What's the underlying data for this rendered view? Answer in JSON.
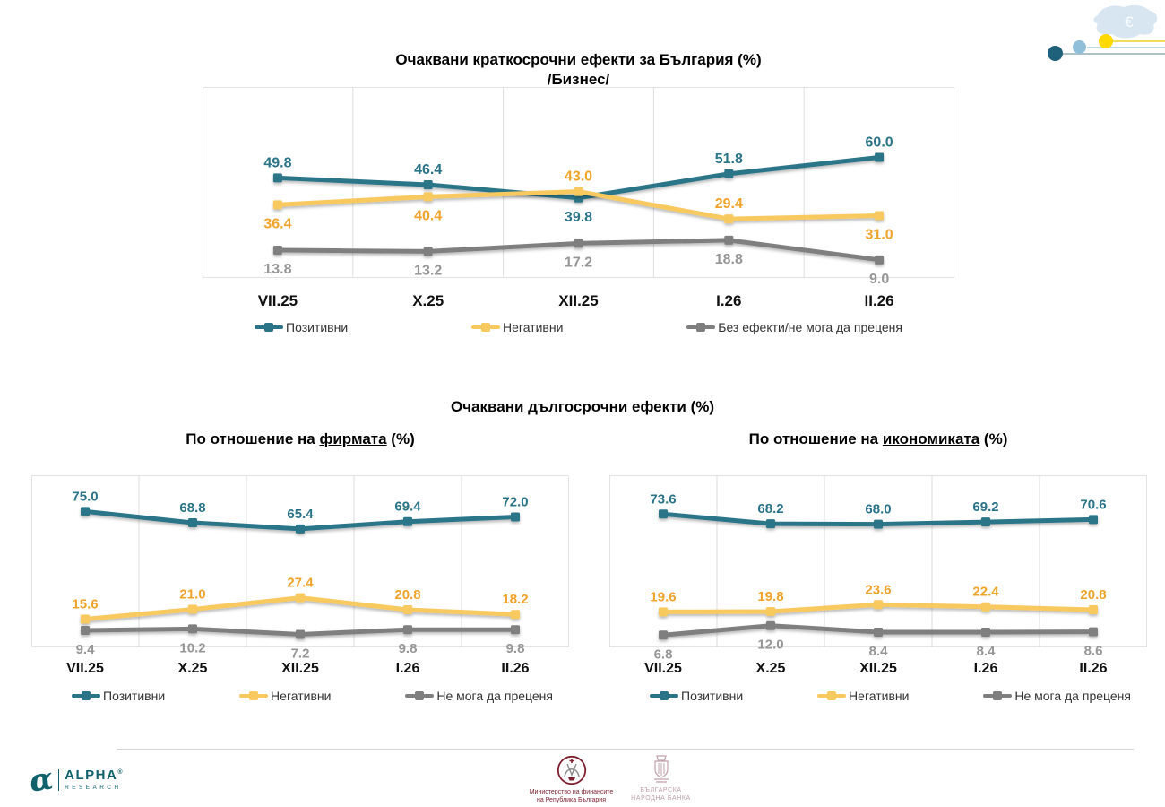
{
  "colors": {
    "teal": "#2B7488",
    "yellow_line": "#F8C95E",
    "yellow_label": "#F0A32A",
    "gray_line": "#7F7F7F",
    "gray_label": "#969696",
    "grid": "#DEDEDE",
    "alpha_brand": "#11616C",
    "ministry_red": "#7E1F2D",
    "bnb_rose": "#C1A0AB",
    "map_blue": "#D8E6F2",
    "dot_yellow": "#FFD900",
    "dot_blue": "#8FBFD9",
    "dot_teal": "#1F607A"
  },
  "decor": {
    "currency_symbol": "€"
  },
  "section": {
    "long_term_title": "Очаквани дългосрочни ефекти (%)"
  },
  "chart_data": [
    {
      "id": "short_term_business",
      "type": "line",
      "title": "Очаквани краткосрочни ефекти за България (%)",
      "subtitle": "/Бизнес/",
      "categories": [
        "VII.25",
        "X.25",
        "XII.25",
        "I.26",
        "II.26"
      ],
      "ylim": [
        0,
        95
      ],
      "grid": "vertical",
      "legend_position": "bottom",
      "series": [
        {
          "name": "Позитивни",
          "color": "#2B7488",
          "values": [
            49.8,
            46.4,
            39.8,
            51.8,
            60.0
          ],
          "label_side": [
            "above",
            "above",
            "below",
            "above",
            "above"
          ]
        },
        {
          "name": "Негативни",
          "color": "#F8C95E",
          "label_color": "#F0A32A",
          "values": [
            36.4,
            40.4,
            43.0,
            29.4,
            31.0
          ],
          "label_side": [
            "below",
            "below",
            "above",
            "above",
            "below"
          ]
        },
        {
          "name": "Без ефекти/не мога да преценя",
          "color": "#7F7F7F",
          "label_color": "#969696",
          "values": [
            13.8,
            13.2,
            17.2,
            18.8,
            9.0
          ],
          "label_side": [
            "below",
            "below",
            "below",
            "below",
            "below"
          ]
        }
      ]
    },
    {
      "id": "long_term_firm",
      "type": "line",
      "title_prefix": "По отношение на ",
      "title_underline": "фирмата",
      "title_suffix": " (%)",
      "categories": [
        "VII.25",
        "X.25",
        "XII.25",
        "I.26",
        "II.26"
      ],
      "ylim": [
        0,
        95
      ],
      "grid": "vertical",
      "legend_position": "bottom",
      "series": [
        {
          "name": "Позитивни",
          "color": "#2B7488",
          "values": [
            75.0,
            68.8,
            65.4,
            69.4,
            72.0
          ],
          "label_side": [
            "above",
            "above",
            "above",
            "above",
            "above"
          ]
        },
        {
          "name": "Негативни",
          "color": "#F8C95E",
          "label_color": "#F0A32A",
          "values": [
            15.6,
            21.0,
            27.4,
            20.8,
            18.2
          ],
          "label_side": [
            "above",
            "above",
            "above",
            "above",
            "above"
          ]
        },
        {
          "name": "Не мога да преценя",
          "color": "#7F7F7F",
          "label_color": "#969696",
          "values": [
            9.4,
            10.2,
            7.2,
            9.8,
            9.8
          ],
          "label_side": [
            "below",
            "below",
            "below",
            "below",
            "below"
          ]
        }
      ]
    },
    {
      "id": "long_term_economy",
      "type": "line",
      "title_prefix": "По отношение на ",
      "title_underline": "икономиката",
      "title_suffix": " (%)",
      "categories": [
        "VII.25",
        "X.25",
        "XII.25",
        "I.26",
        "II.26"
      ],
      "ylim": [
        0,
        95
      ],
      "grid": "vertical",
      "legend_position": "bottom",
      "series": [
        {
          "name": "Позитивни",
          "color": "#2B7488",
          "values": [
            73.6,
            68.2,
            68.0,
            69.2,
            70.6
          ],
          "label_side": [
            "above",
            "above",
            "above",
            "above",
            "above"
          ]
        },
        {
          "name": "Негативни",
          "color": "#F8C95E",
          "label_color": "#F0A32A",
          "values": [
            19.6,
            19.8,
            23.6,
            22.4,
            20.8
          ],
          "label_side": [
            "above",
            "above",
            "above",
            "above",
            "above"
          ]
        },
        {
          "name": "Не мога да преценя",
          "color": "#7F7F7F",
          "label_color": "#969696",
          "values": [
            6.8,
            12.0,
            8.4,
            8.4,
            8.6
          ],
          "label_side": [
            "below",
            "below",
            "below",
            "below",
            "below"
          ]
        }
      ]
    }
  ],
  "footer": {
    "alpha": {
      "brand": "ALPHA",
      "reg": "®",
      "sub": "RESEARCH"
    },
    "ministry": {
      "line1": "Министерство на финансите",
      "line2": "на Република България"
    },
    "bnb": {
      "line1": "БЪЛГАРСКА",
      "line2": "НАРОДНА БАНКА"
    }
  }
}
